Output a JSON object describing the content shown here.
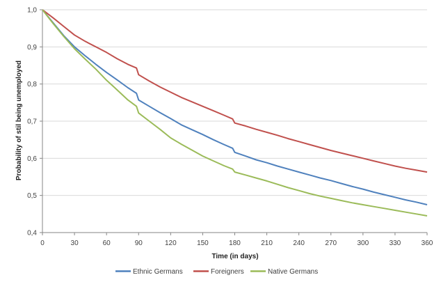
{
  "chart_data": {
    "type": "line",
    "title": "",
    "xlabel": "Time (in days)",
    "ylabel": "Probability of stil being unemployed",
    "xlim": [
      0,
      360
    ],
    "ylim": [
      0.4,
      1.0
    ],
    "x_ticks": [
      0,
      30,
      60,
      90,
      120,
      150,
      180,
      210,
      240,
      270,
      300,
      330,
      360
    ],
    "y_ticks": [
      0.4,
      0.5,
      0.6,
      0.7,
      0.8,
      0.9,
      1.0
    ],
    "y_tick_labels": [
      "0,4",
      "0,5",
      "0,6",
      "0,7",
      "0,8",
      "0,9",
      "1,0"
    ],
    "grid": "horizontal",
    "legend_position": "bottom",
    "x": [
      0,
      10,
      20,
      30,
      40,
      50,
      60,
      70,
      80,
      88,
      90,
      100,
      110,
      120,
      130,
      140,
      150,
      160,
      170,
      178,
      180,
      190,
      200,
      210,
      220,
      230,
      240,
      250,
      260,
      270,
      280,
      290,
      300,
      310,
      320,
      330,
      340,
      350,
      360
    ],
    "series": [
      {
        "name": "Ethnic Germans",
        "color": "#4f81bd",
        "values": [
          1.0,
          0.965,
          0.93,
          0.9,
          0.876,
          0.853,
          0.831,
          0.811,
          0.79,
          0.775,
          0.757,
          0.74,
          0.723,
          0.707,
          0.69,
          0.677,
          0.664,
          0.65,
          0.637,
          0.627,
          0.616,
          0.606,
          0.596,
          0.588,
          0.579,
          0.571,
          0.563,
          0.555,
          0.547,
          0.54,
          0.532,
          0.524,
          0.517,
          0.509,
          0.502,
          0.495,
          0.488,
          0.482,
          0.475
        ]
      },
      {
        "name": "Foreigners",
        "color": "#c0504d",
        "values": [
          1.0,
          0.978,
          0.955,
          0.932,
          0.915,
          0.9,
          0.885,
          0.868,
          0.853,
          0.843,
          0.825,
          0.808,
          0.792,
          0.778,
          0.764,
          0.752,
          0.74,
          0.728,
          0.716,
          0.706,
          0.695,
          0.687,
          0.678,
          0.67,
          0.662,
          0.653,
          0.645,
          0.637,
          0.629,
          0.621,
          0.614,
          0.607,
          0.6,
          0.593,
          0.586,
          0.579,
          0.573,
          0.568,
          0.563
        ]
      },
      {
        "name": "Native Germans",
        "color": "#9bbb59",
        "values": [
          1.0,
          0.963,
          0.928,
          0.895,
          0.867,
          0.84,
          0.81,
          0.784,
          0.757,
          0.74,
          0.722,
          0.7,
          0.678,
          0.655,
          0.638,
          0.622,
          0.606,
          0.593,
          0.58,
          0.571,
          0.563,
          0.555,
          0.547,
          0.539,
          0.53,
          0.521,
          0.513,
          0.505,
          0.498,
          0.492,
          0.486,
          0.48,
          0.475,
          0.47,
          0.465,
          0.46,
          0.455,
          0.45,
          0.445
        ]
      }
    ]
  }
}
